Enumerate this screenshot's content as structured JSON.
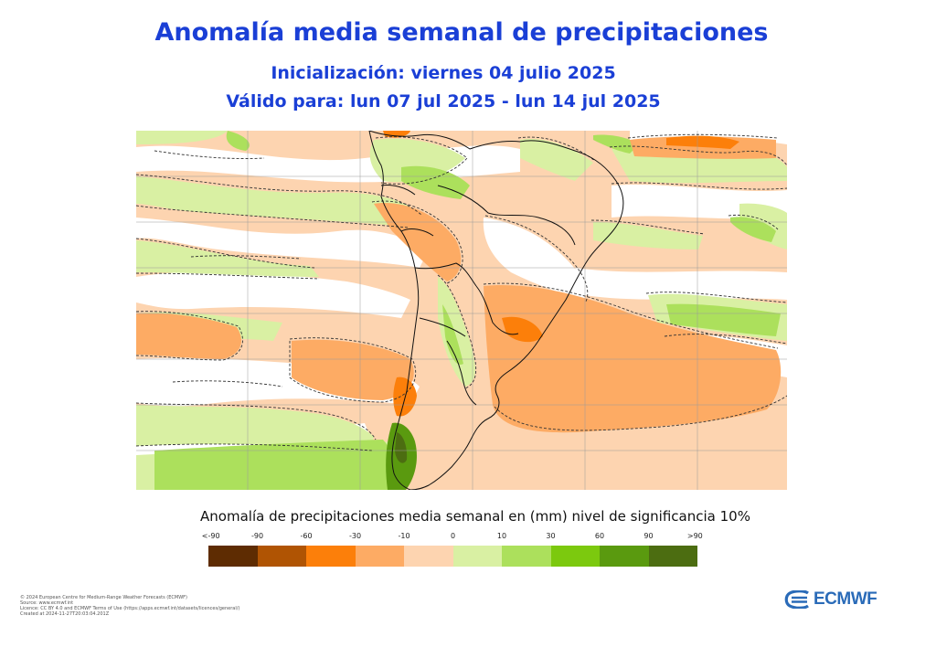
{
  "title": "Anomalía media semanal de precipitaciones",
  "subtitle_init": "Inicialización: viernes 04 julio 2025",
  "subtitle_valid": "Válido para: lun 07 jul 2025 - lun 14 jul 2025",
  "legend": {
    "title": "Anomalía de precipitaciones media semanal en (mm) nivel de significancia 10%",
    "labels": [
      "<-90",
      "-90",
      "-60",
      "-30",
      "-10",
      "0",
      "10",
      "30",
      "60",
      "90",
      ">90"
    ],
    "colors": [
      "#5e2c02",
      "#b05403",
      "#fc7f0a",
      "#fdab64",
      "#fdd4b0",
      "#d9f0a3",
      "#ace05c",
      "#7cc90e",
      "#5a9a0f",
      "#4c6d11"
    ]
  },
  "credits": [
    "© 2024 European Centre for Medium-Range Weather Forecasts (ECMWF)",
    "Source: www.ecmwf.int",
    "Licence: CC BY 4.0 and ECMWF Terms of Use (https://apps.ecmwf.int/datasets/licences/general/)",
    "Created at 2024-11-27T20:03:04.201Z"
  ],
  "logo_text": "ECMWF",
  "colors": {
    "title": "#1a3fd6",
    "logo": "#2a6bb8"
  }
}
